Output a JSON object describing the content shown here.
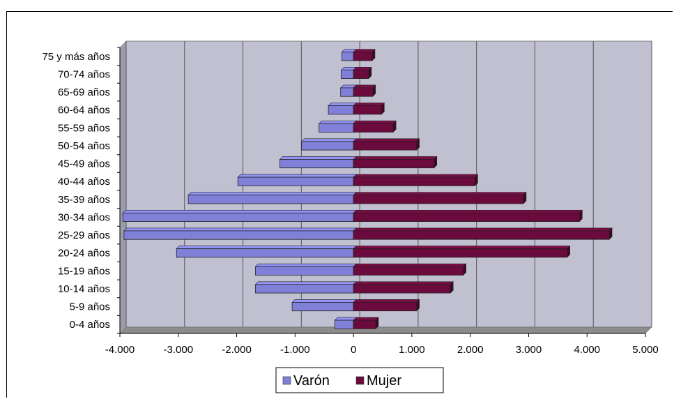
{
  "chart_data": {
    "type": "bar",
    "orientation": "horizontal",
    "title": "",
    "xlabel": "",
    "ylabel": "",
    "categories": [
      "0-4 años",
      "5-9 años",
      "10-14 años",
      "15-19 años",
      "20-24 años",
      "25-29 años",
      "30-34 años",
      "35-39 años",
      "40-44 años",
      "45-49 años",
      "50-54 años",
      "55-59 años",
      "60-64 años",
      "65-69 años",
      "70-74 años",
      "75 y más años"
    ],
    "series": [
      {
        "name": "Varón",
        "color": "#8080d8",
        "values": [
          -320,
          -1050,
          -1680,
          -1680,
          -3030,
          -3930,
          -3950,
          -2830,
          -1980,
          -1260,
          -890,
          -590,
          -430,
          -220,
          -210,
          -200
        ]
      },
      {
        "name": "Mujer",
        "color": "#6b0a3c",
        "values": [
          380,
          1080,
          1660,
          1880,
          3660,
          4380,
          3870,
          2910,
          2080,
          1380,
          1080,
          680,
          480,
          330,
          260,
          320
        ]
      }
    ],
    "xlim": [
      -4000,
      5000
    ],
    "xticks": [
      -4000,
      -3000,
      -2000,
      -1000,
      0,
      1000,
      2000,
      3000,
      4000,
      5000
    ],
    "xtick_labels": [
      "-4.000",
      "-3.000",
      "-2.000",
      "-1.000",
      "0",
      "1.000",
      "2.000",
      "3.000",
      "4.000",
      "5.000"
    ],
    "grid": "vertical",
    "legend_position": "bottom",
    "plot_background": "#c0c0d0"
  }
}
